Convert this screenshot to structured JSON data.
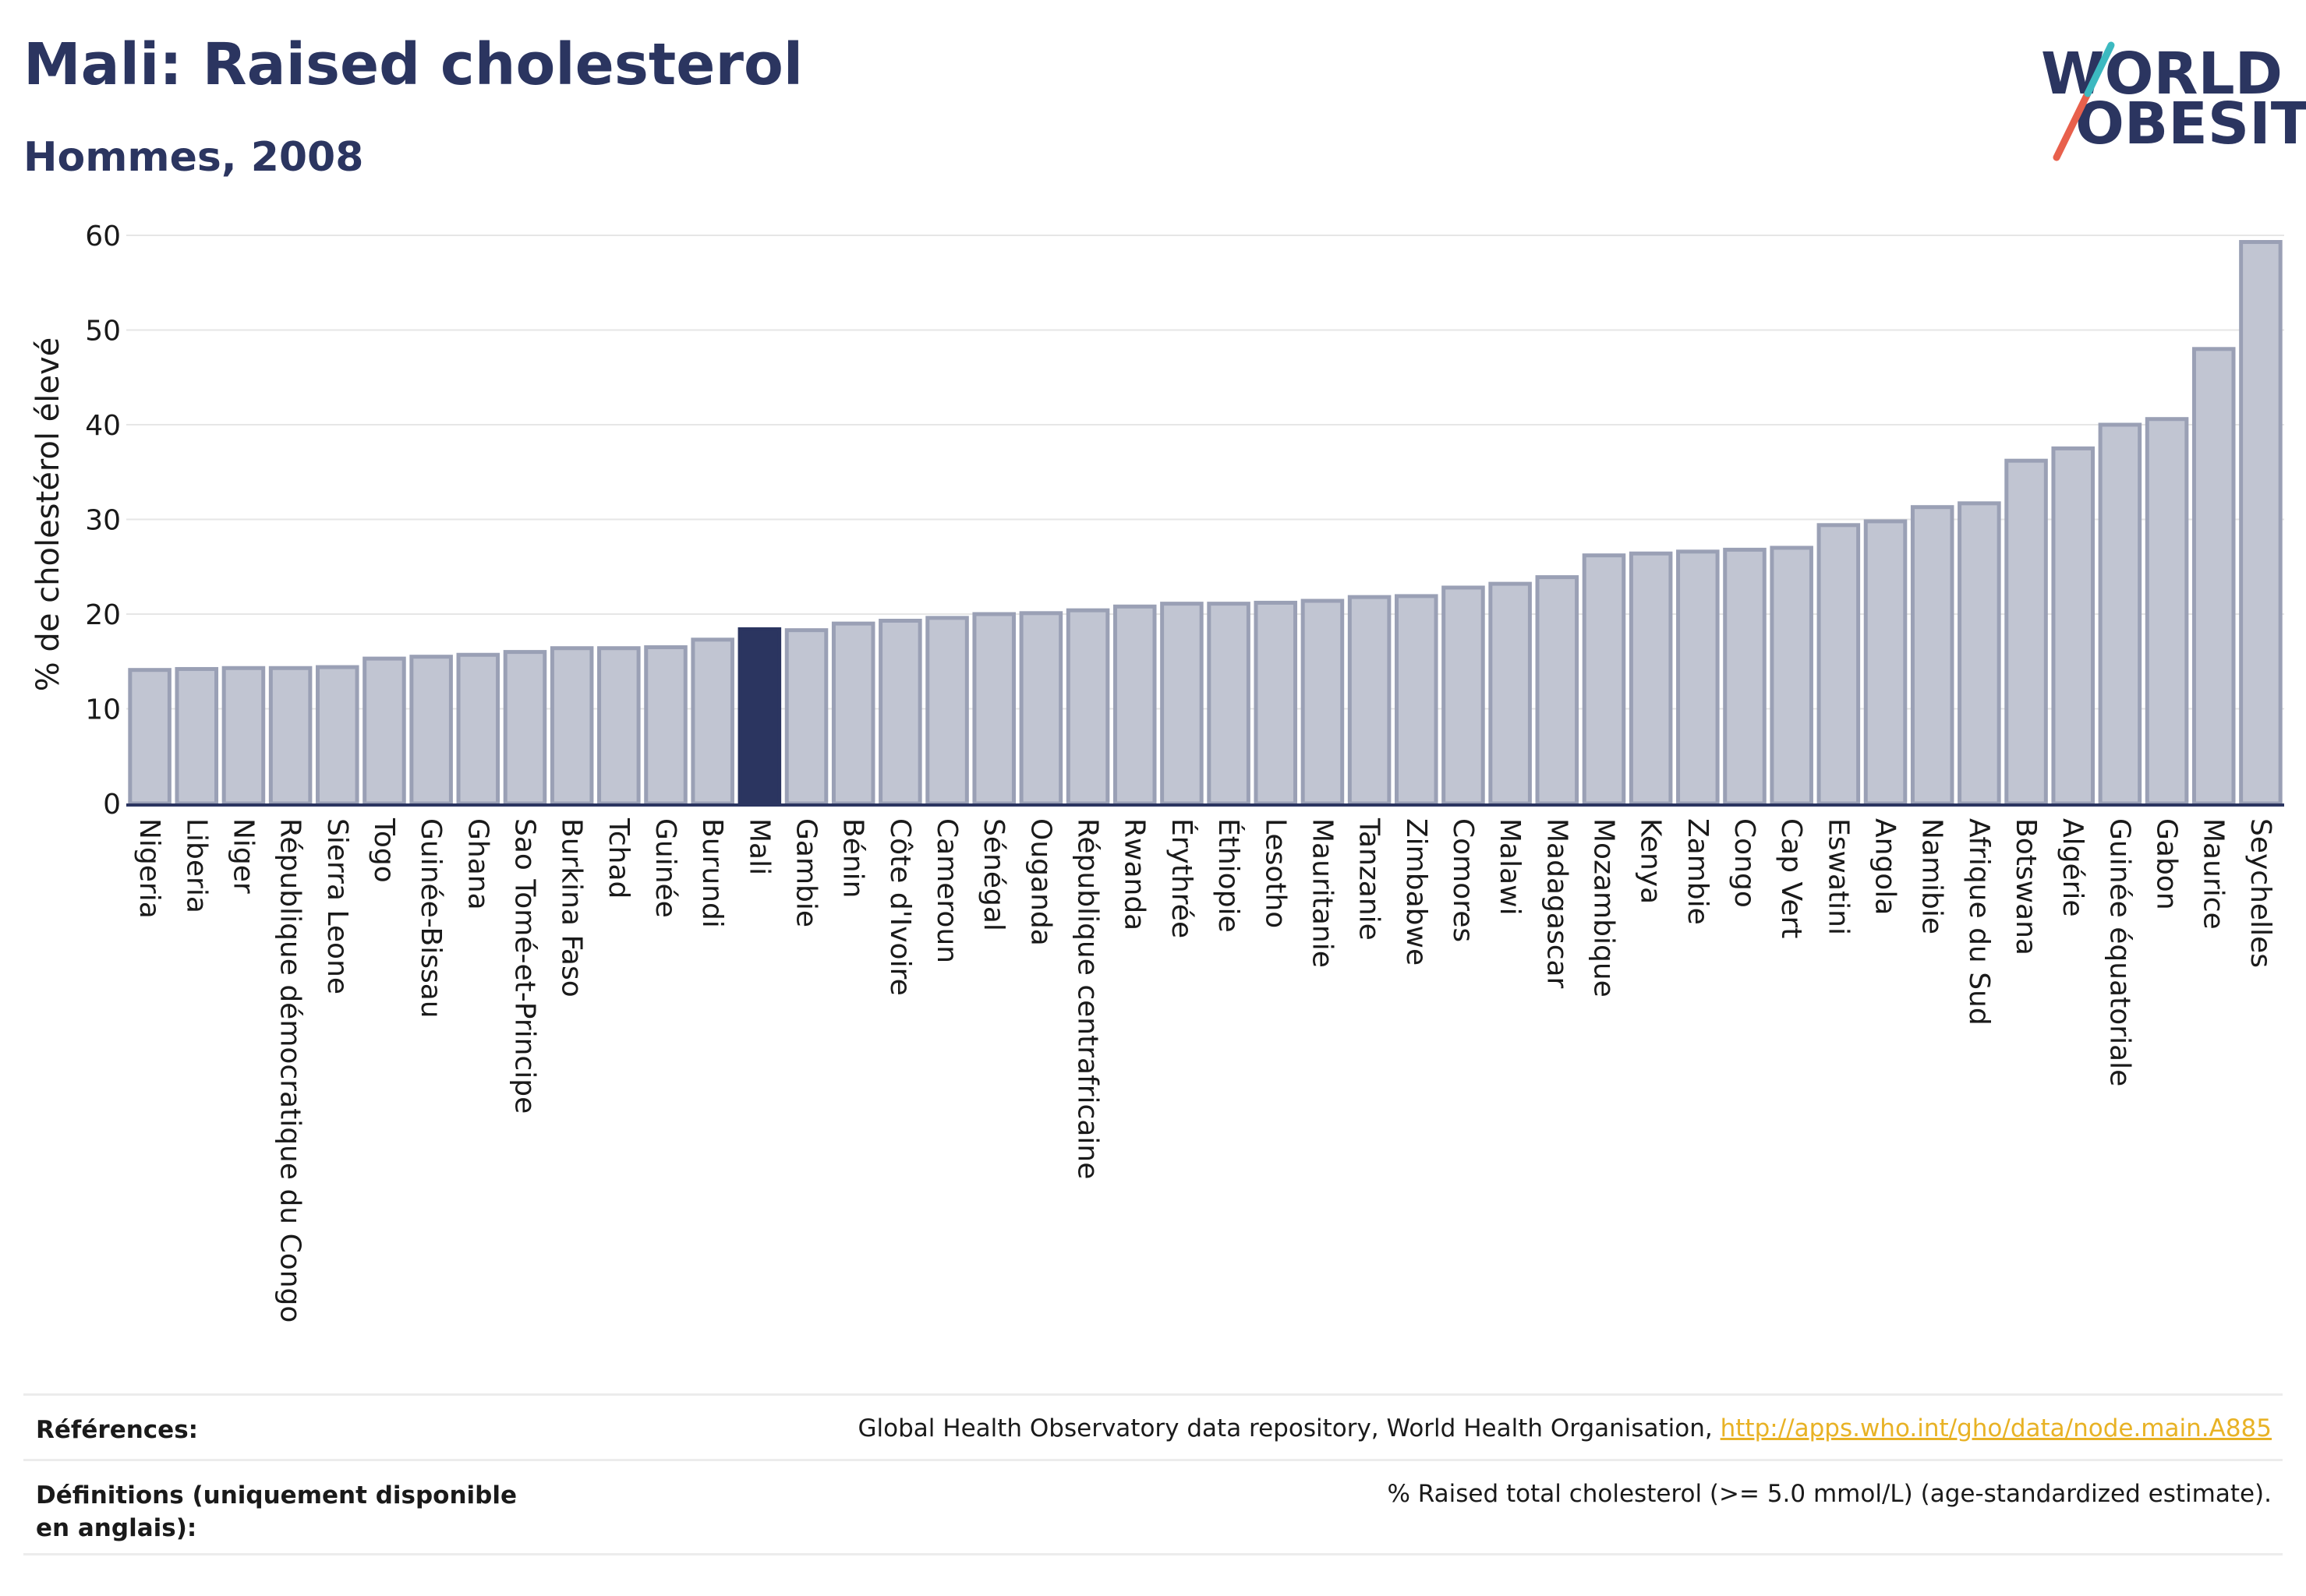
{
  "header": {
    "title": "Mali: Raised cholesterol",
    "subtitle": "Hommes, 2008"
  },
  "logo": {
    "line1": "WORLD",
    "line2": "OBESITY",
    "text_color": "#2b3560",
    "slash_colors": [
      "#e8604c",
      "#3cb9c0"
    ]
  },
  "colors": {
    "bar": "#c1c5d2",
    "bar_stroke": "#9aa0b5",
    "highlight": "#2b3560",
    "grid": "#e6e6e6",
    "axis": "#2b3560",
    "link": "#e8b225"
  },
  "chart_data": {
    "type": "bar",
    "title": "Mali: Raised cholesterol",
    "subtitle": "Hommes, 2008",
    "xlabel": "",
    "ylabel": "% de cholestérol élevé",
    "ylim": [
      0,
      60
    ],
    "yticks": [
      0,
      10,
      20,
      30,
      40,
      50,
      60
    ],
    "grid": true,
    "highlight": "Mali",
    "categories": [
      "Nigeria",
      "Liberia",
      "Niger",
      "République démocratique du Congo",
      "Sierra Leone",
      "Togo",
      "Guinée-Bissau",
      "Ghana",
      "Sao Tomé-et-Principe",
      "Burkina Faso",
      "Tchad",
      "Guinée",
      "Burundi",
      "Mali",
      "Gambie",
      "Bénin",
      "Côte d'Ivoire",
      "Cameroun",
      "Sénégal",
      "Ouganda",
      "République centrafricaine",
      "Rwanda",
      "Érythrée",
      "Éthiopie",
      "Lesotho",
      "Mauritanie",
      "Tanzanie",
      "Zimbabwe",
      "Comores",
      "Malawi",
      "Madagascar",
      "Mozambique",
      "Kenya",
      "Zambie",
      "Congo",
      "Cap Vert",
      "Eswatini",
      "Angola",
      "Namibie",
      "Afrique du Sud",
      "Botswana",
      "Algérie",
      "Guinée équatoriale",
      "Gabon",
      "Maurice",
      "Seychelles"
    ],
    "values": [
      14.1,
      14.2,
      14.3,
      14.3,
      14.4,
      15.3,
      15.5,
      15.7,
      16.0,
      16.4,
      16.4,
      16.5,
      17.3,
      18.4,
      18.3,
      19.0,
      19.3,
      19.6,
      20.0,
      20.1,
      20.4,
      20.8,
      21.1,
      21.1,
      21.2,
      21.4,
      21.8,
      21.9,
      22.8,
      23.2,
      23.9,
      26.2,
      26.4,
      26.6,
      26.8,
      27.0,
      29.4,
      29.8,
      31.3,
      31.7,
      36.2,
      37.5,
      40.0,
      40.6,
      48.0,
      59.3
    ]
  },
  "footer": {
    "references_label": "Références:",
    "references_text": "Global Health Observatory data repository, World Health Organisation, ",
    "references_link": "http://apps.who.int/gho/data/node.main.A885",
    "definitions_label": "Définitions (uniquement disponible en anglais):",
    "definitions_text": "% Raised total cholesterol (>= 5.0 mmol/L) (age-standardized estimate)."
  }
}
